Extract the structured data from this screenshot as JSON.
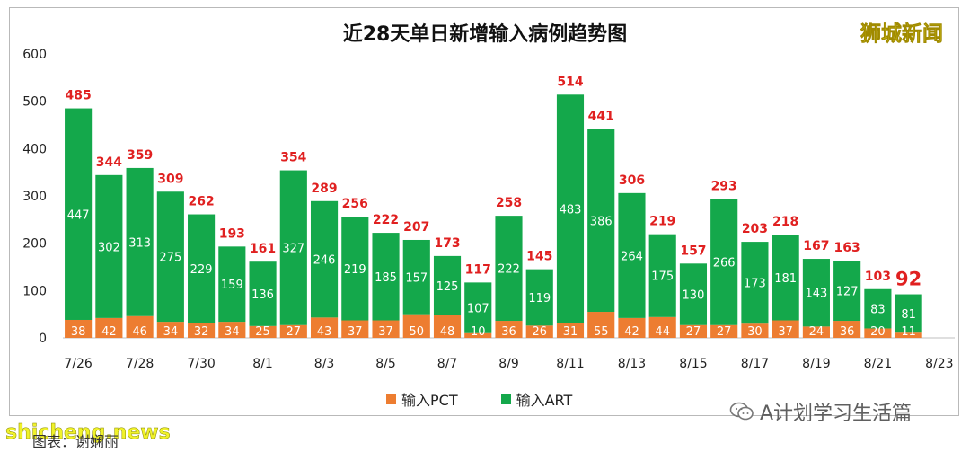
{
  "chart_data": {
    "type": "bar",
    "stacked": true,
    "title": "近28天单日新增输入病例趋势图",
    "categories": [
      "7/26",
      "7/27",
      "7/28",
      "7/29",
      "7/30",
      "7/31",
      "8/1",
      "8/2",
      "8/3",
      "8/4",
      "8/5",
      "8/6",
      "8/7",
      "8/8",
      "8/9",
      "8/10",
      "8/11",
      "8/12",
      "8/13",
      "8/14",
      "8/15",
      "8/16",
      "8/17",
      "8/18",
      "8/19",
      "8/20",
      "8/21",
      "8/22"
    ],
    "x_tick_labels": [
      "7/26",
      "7/28",
      "7/30",
      "8/1",
      "8/3",
      "8/5",
      "8/7",
      "8/9",
      "8/11",
      "8/13",
      "8/15",
      "8/17",
      "8/19",
      "8/21",
      "8/23"
    ],
    "series": [
      {
        "name": "输入PCT",
        "color": "#ed7d31",
        "values": [
          38,
          42,
          46,
          34,
          32,
          34,
          25,
          27,
          43,
          37,
          37,
          50,
          48,
          10,
          36,
          26,
          31,
          55,
          42,
          44,
          27,
          27,
          30,
          37,
          24,
          36,
          20,
          11
        ]
      },
      {
        "name": "输入ART",
        "color": "#14a84b",
        "values": [
          447,
          302,
          313,
          275,
          229,
          159,
          136,
          327,
          246,
          219,
          185,
          157,
          125,
          107,
          222,
          119,
          483,
          386,
          264,
          175,
          130,
          266,
          173,
          181,
          143,
          127,
          83,
          81
        ]
      }
    ],
    "totals": [
      485,
      344,
      359,
      309,
      262,
      193,
      161,
      354,
      289,
      256,
      222,
      207,
      173,
      117,
      258,
      145,
      514,
      441,
      306,
      219,
      157,
      293,
      203,
      218,
      167,
      163,
      103,
      92
    ],
    "ylim": [
      0,
      600
    ],
    "yticks": [
      0,
      100,
      200,
      300,
      400,
      500,
      600
    ],
    "xlabel": "",
    "ylabel": "",
    "legend_position": "bottom",
    "grid": false
  },
  "brand": "狮城新闻",
  "wechat_account": "A计划学习生活篇",
  "news_watermark": "shicheng.news",
  "caption": "图表：谢娴丽",
  "colors": {
    "pct": "#ed7d31",
    "art": "#14a84b",
    "total_label": "#e02020"
  }
}
